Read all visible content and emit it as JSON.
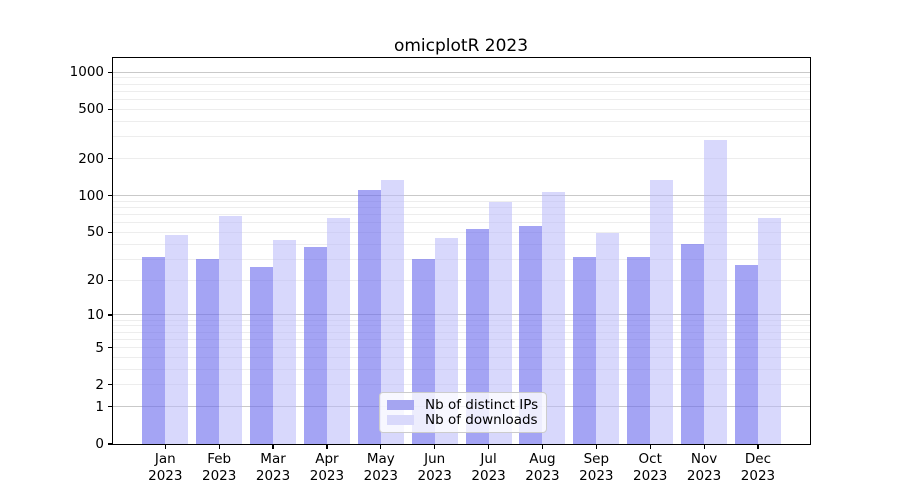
{
  "window": {
    "background": "#ffffff"
  },
  "chart_data": {
    "type": "bar",
    "title": "omicplotR 2023",
    "categories": [
      "Jan\n2023",
      "Feb\n2023",
      "Mar\n2023",
      "Apr\n2023",
      "May\n2023",
      "Jun\n2023",
      "Jul\n2023",
      "Aug\n2023",
      "Sep\n2023",
      "Oct\n2023",
      "Nov\n2023",
      "Dec\n2023"
    ],
    "series": [
      {
        "name": "Nb of distinct IPs",
        "color": "#a5a5f1",
        "fill": "rgba(108,108,238,0.62)",
        "values": [
          31,
          30,
          26,
          38,
          112,
          30,
          53,
          56,
          31,
          31,
          40,
          27
        ]
      },
      {
        "name": "Nb of downloads",
        "color": "#d9d9fb",
        "fill": "rgba(186,186,250,0.56)",
        "values": [
          48,
          68,
          43,
          66,
          135,
          45,
          88,
          106,
          49,
          133,
          281,
          66
        ]
      }
    ],
    "xlabel": "",
    "ylabel": "",
    "y_axis": {
      "scale": "log1p",
      "ticks": [
        0,
        1,
        2,
        5,
        10,
        20,
        50,
        100,
        200,
        500,
        1000
      ],
      "top": 1300,
      "major_gridlines": [
        1,
        10,
        100,
        1000
      ],
      "minor_gridlines": [
        2,
        3,
        4,
        5,
        6,
        7,
        8,
        9,
        20,
        30,
        40,
        50,
        60,
        70,
        80,
        90,
        200,
        300,
        400,
        500,
        600,
        700,
        800,
        900
      ]
    },
    "ylim": [
      0,
      1300
    ],
    "grid": "on",
    "legend_position": "lower center"
  },
  "colors": {
    "grid_major": "#c9c9c9",
    "grid_minor": "#ededed",
    "spine": "#000000",
    "text": "#000000",
    "legend_border": "#cccccc",
    "legend_bg": "rgba(255,255,255,0.8)"
  }
}
